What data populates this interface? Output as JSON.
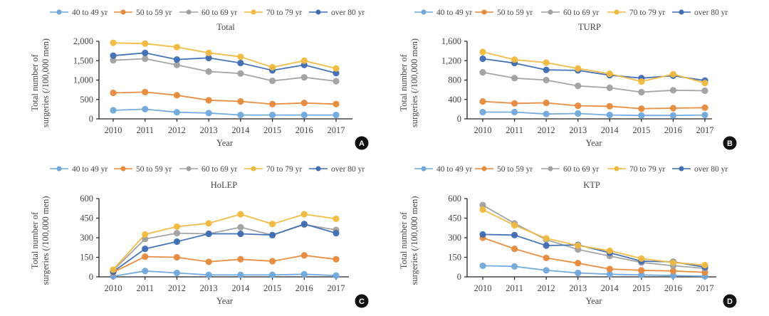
{
  "colors": {
    "40 to 49 yr": "#6fa8dc",
    "50 to 59 yr": "#e8893a",
    "60 to 69 yr": "#a0a0a0",
    "70 to 79 yr": "#f2b93b",
    "over 80 yr": "#3d6db5"
  },
  "chart_data": [
    {
      "type": "line",
      "panel": "A",
      "title": "Total",
      "xlabel": "Year",
      "ylabel": "Total number of surgeries (/100,000 men)",
      "x": [
        2010,
        2011,
        2012,
        2013,
        2014,
        2015,
        2016,
        2017
      ],
      "x_tick_labels": [
        "2010",
        "2011",
        "2012",
        "2013",
        "2014",
        "2015",
        "2016",
        "2017"
      ],
      "ylim": [
        0,
        2000
      ],
      "y_ticks": [
        0,
        500,
        1000,
        1500,
        2000
      ],
      "y_tick_labels": [
        "0",
        "500",
        "1,000",
        "1,500",
        "2,000"
      ],
      "legend": "top",
      "grid": false,
      "series": [
        {
          "name": "40 to 49 yr",
          "values": [
            220,
            250,
            170,
            150,
            100,
            100,
            100,
            100
          ]
        },
        {
          "name": "50 to 59 yr",
          "values": [
            670,
            690,
            610,
            480,
            450,
            380,
            410,
            380
          ]
        },
        {
          "name": "60 to 69 yr",
          "values": [
            1510,
            1550,
            1390,
            1220,
            1170,
            980,
            1070,
            970
          ]
        },
        {
          "name": "70 to 79 yr",
          "values": [
            1960,
            1940,
            1850,
            1700,
            1600,
            1330,
            1500,
            1300
          ]
        },
        {
          "name": "over 80 yr",
          "values": [
            1630,
            1700,
            1530,
            1570,
            1440,
            1250,
            1390,
            1180
          ]
        }
      ]
    },
    {
      "type": "line",
      "panel": "B",
      "title": "TURP",
      "xlabel": "Year",
      "ylabel": "Total number of surgeries (/100,000 men)",
      "x": [
        2010,
        2011,
        2012,
        2013,
        2014,
        2015,
        2016,
        2017
      ],
      "x_tick_labels": [
        "2010",
        "2011",
        "2012",
        "2013",
        "2014",
        "2015",
        "2016",
        "2017"
      ],
      "ylim": [
        0,
        1600
      ],
      "y_ticks": [
        0,
        400,
        800,
        1200,
        1600
      ],
      "y_tick_labels": [
        "0",
        "400",
        "800",
        "1,200",
        "1,600"
      ],
      "legend": "top",
      "grid": false,
      "series": [
        {
          "name": "40 to 49 yr",
          "values": [
            140,
            140,
            100,
            110,
            80,
            70,
            70,
            80
          ]
        },
        {
          "name": "50 to 59 yr",
          "values": [
            360,
            320,
            330,
            270,
            260,
            210,
            220,
            230
          ]
        },
        {
          "name": "60 to 69 yr",
          "values": [
            960,
            840,
            800,
            680,
            640,
            550,
            590,
            580
          ]
        },
        {
          "name": "70 to 79 yr",
          "values": [
            1380,
            1220,
            1160,
            1040,
            930,
            770,
            920,
            740
          ]
        },
        {
          "name": "over 80 yr",
          "values": [
            1240,
            1150,
            1010,
            1000,
            900,
            840,
            890,
            790
          ]
        }
      ]
    },
    {
      "type": "line",
      "panel": "C",
      "title": "HoLEP",
      "xlabel": "Year",
      "ylabel": "Total number of surgeries (/100,000 men)",
      "x": [
        2010,
        2011,
        2012,
        2013,
        2014,
        2015,
        2016,
        2017
      ],
      "x_tick_labels": [
        "2010",
        "2011",
        "2012",
        "2013",
        "2014",
        "2015",
        "2016",
        "2017"
      ],
      "ylim": [
        0,
        600
      ],
      "y_ticks": [
        0,
        150,
        300,
        450,
        600
      ],
      "y_tick_labels": [
        "0",
        "150",
        "300",
        "450",
        "600"
      ],
      "legend": "top",
      "grid": false,
      "series": [
        {
          "name": "40 to 49 yr",
          "values": [
            5,
            45,
            30,
            15,
            15,
            15,
            20,
            10
          ]
        },
        {
          "name": "50 to 59 yr",
          "values": [
            35,
            155,
            150,
            115,
            135,
            120,
            165,
            135
          ]
        },
        {
          "name": "60 to 69 yr",
          "values": [
            50,
            290,
            335,
            330,
            380,
            320,
            400,
            360
          ]
        },
        {
          "name": "70 to 79 yr",
          "values": [
            55,
            325,
            385,
            410,
            480,
            405,
            480,
            445
          ]
        },
        {
          "name": "over 80 yr",
          "values": [
            40,
            215,
            270,
            330,
            330,
            320,
            405,
            335
          ]
        }
      ]
    },
    {
      "type": "line",
      "panel": "D",
      "title": "KTP",
      "xlabel": "Year",
      "ylabel": "Total number of surgeries (/100,000 men)",
      "x": [
        2010,
        2011,
        2012,
        2013,
        2014,
        2015,
        2016,
        2017
      ],
      "x_tick_labels": [
        "2010",
        "2011",
        "2012",
        "2013",
        "2014",
        "2015",
        "2016",
        "2017"
      ],
      "ylim": [
        0,
        600
      ],
      "y_ticks": [
        0,
        150,
        300,
        450,
        600
      ],
      "y_tick_labels": [
        "0",
        "150",
        "300",
        "450",
        "600"
      ],
      "legend": "top",
      "grid": false,
      "series": [
        {
          "name": "40 to 49 yr",
          "values": [
            85,
            80,
            50,
            30,
            20,
            15,
            10,
            5
          ]
        },
        {
          "name": "50 to 59 yr",
          "values": [
            300,
            215,
            145,
            105,
            60,
            50,
            45,
            35
          ]
        },
        {
          "name": "60 to 69 yr",
          "values": [
            550,
            410,
            285,
            210,
            160,
            110,
            85,
            65
          ]
        },
        {
          "name": "70 to 79 yr",
          "values": [
            515,
            395,
            295,
            240,
            200,
            140,
            110,
            90
          ]
        },
        {
          "name": "over 80 yr",
          "values": [
            325,
            320,
            240,
            245,
            185,
            120,
            115,
            75
          ]
        }
      ]
    }
  ]
}
